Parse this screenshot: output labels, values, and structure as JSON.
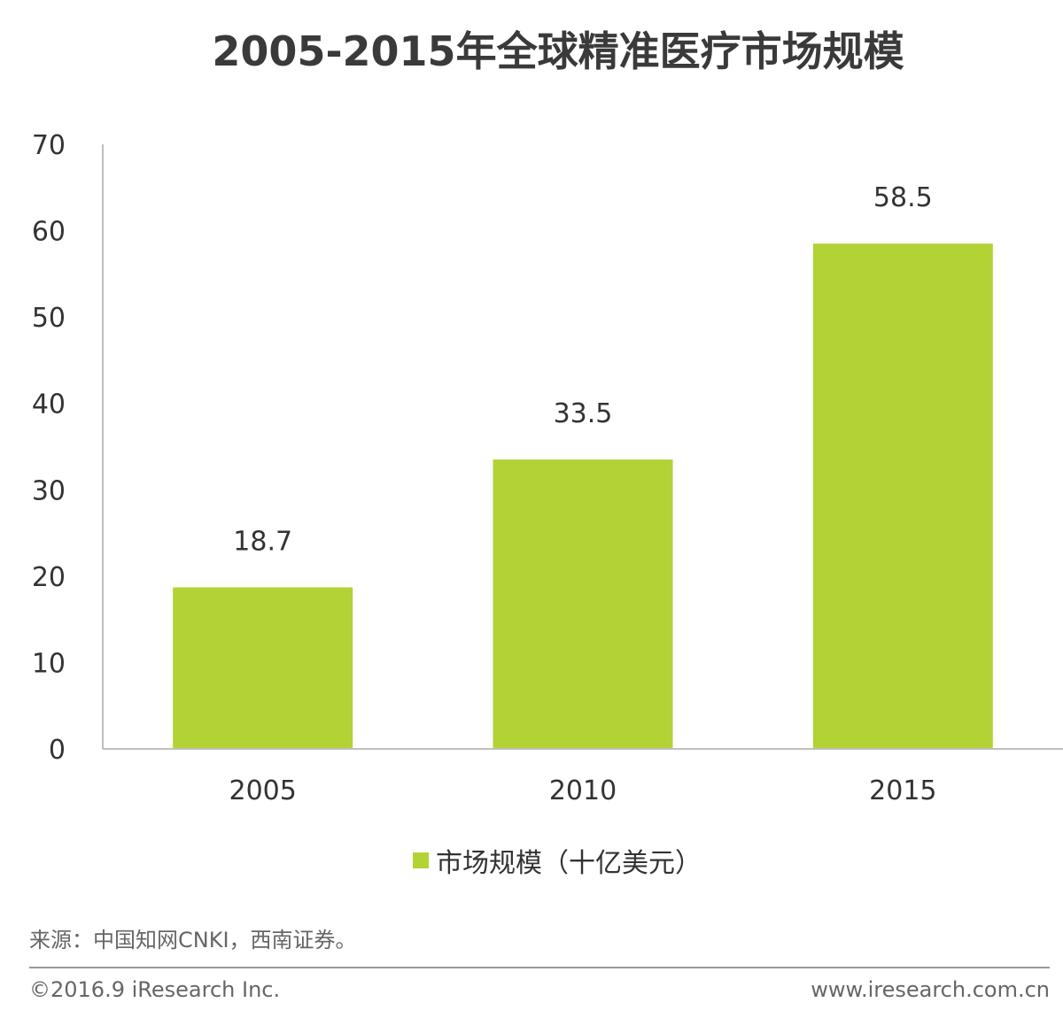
{
  "chart_data": {
    "type": "bar",
    "title": "2005-2015年全球精准医疗市场规模",
    "categories": [
      "2005",
      "2010",
      "2015"
    ],
    "series": [
      {
        "name": "市场规模（十亿美元）",
        "values": [
          18.7,
          33.5,
          58.5
        ]
      }
    ],
    "data_labels": [
      "18.7",
      "33.5",
      "58.5"
    ],
    "ylim": [
      0,
      70
    ],
    "yticks": [
      0,
      10,
      20,
      30,
      40,
      50,
      60,
      70
    ],
    "xlabel": "",
    "ylabel": "",
    "grid": false,
    "legend_position": "bottom",
    "bar_color": "#b2d235",
    "axis_color": "#bfbfbf"
  },
  "footer": {
    "source": "来源：中国知网CNKI，西南证券。",
    "copyright": "©2016.9 iResearch Inc.",
    "website": "www.iresearch.com.cn"
  }
}
